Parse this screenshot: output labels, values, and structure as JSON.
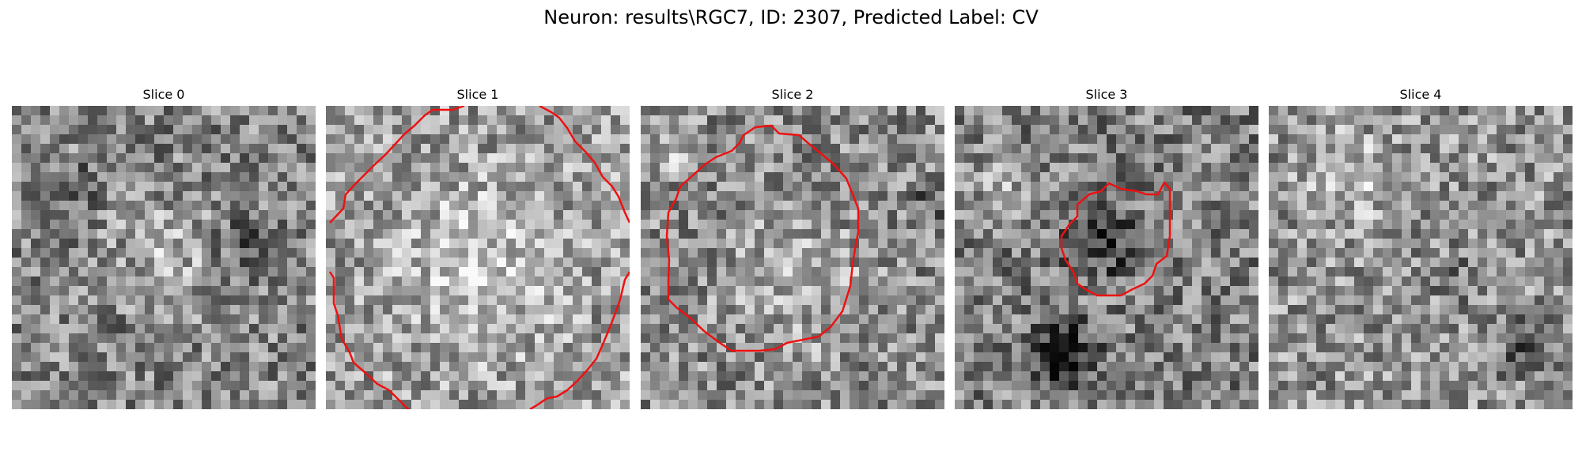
{
  "figure": {
    "title": "Neuron: results\\RGC7, ID: 2307, Predicted Label: CV"
  },
  "panels": [
    {
      "title": "Slice 0",
      "brightness": 0.52,
      "has_contour": false
    },
    {
      "title": "Slice 1",
      "brightness": 0.62,
      "has_contour": true
    },
    {
      "title": "Slice 2",
      "brightness": 0.55,
      "has_contour": true
    },
    {
      "title": "Slice 3",
      "brightness": 0.5,
      "has_contour": true
    },
    {
      "title": "Slice 4",
      "brightness": 0.58,
      "has_contour": false
    }
  ],
  "colors": {
    "contour": "#ee1111"
  }
}
